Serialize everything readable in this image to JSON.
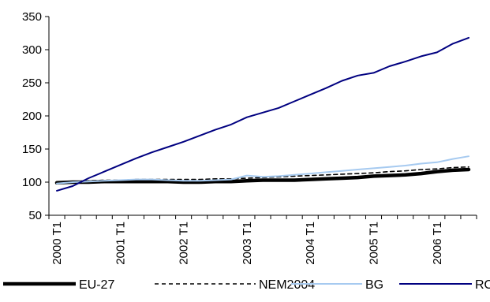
{
  "chart_data": {
    "type": "line",
    "title": "",
    "xlabel": "",
    "ylabel": "",
    "ylim": [
      50,
      350
    ],
    "yticks": [
      50,
      100,
      150,
      200,
      250,
      300,
      350
    ],
    "grid": false,
    "legend": "bottom",
    "categories": [
      "2000 T1",
      "2000 T2",
      "2000 T3",
      "2000 T4",
      "2001 T1",
      "2001 T2",
      "2001 T3",
      "2001 T4",
      "2002 T1",
      "2002 T2",
      "2002 T3",
      "2002 T4",
      "2003 T1",
      "2003 T2",
      "2003 T3",
      "2003 T4",
      "2004 T1",
      "2004 T2",
      "2004 T3",
      "2004 T4",
      "2005 T1",
      "2005 T2",
      "2005 T3",
      "2005 T4",
      "2006 T1",
      "2006 T2",
      "2006 T3"
    ],
    "xtick_labels": [
      "2000 T1",
      "2001 T1",
      "2002 T1",
      "2003 T1",
      "2004 T1",
      "2005 T1",
      "2006 T1"
    ],
    "series": [
      {
        "name": "EU-27",
        "color": "#000000",
        "style": "solid-thick",
        "values": [
          99,
          100,
          100,
          101,
          101,
          101,
          101,
          101,
          100,
          100,
          101,
          101,
          102,
          103,
          103,
          103,
          104,
          105,
          106,
          107,
          109,
          110,
          111,
          113,
          116,
          118,
          119
        ]
      },
      {
        "name": "NEM2004",
        "color": "#000000",
        "style": "dashed",
        "values": [
          100,
          101,
          102,
          103,
          103,
          104,
          104,
          104,
          104,
          104,
          105,
          105,
          106,
          107,
          108,
          109,
          110,
          111,
          112,
          113,
          114,
          116,
          117,
          119,
          120,
          122,
          123
        ]
      },
      {
        "name": "BG",
        "color": "#a6caf0",
        "style": "solid",
        "values": [
          98,
          100,
          101,
          102,
          103,
          104,
          104,
          103,
          102,
          102,
          103,
          104,
          110,
          108,
          109,
          111,
          113,
          115,
          117,
          119,
          121,
          123,
          125,
          128,
          130,
          135,
          139
        ]
      },
      {
        "name": "RO",
        "color": "#000080",
        "style": "solid",
        "values": [
          87,
          94,
          106,
          116,
          126,
          136,
          145,
          153,
          161,
          170,
          179,
          187,
          198,
          205,
          212,
          222,
          232,
          242,
          253,
          261,
          265,
          275,
          282,
          290,
          296,
          309,
          318
        ]
      }
    ]
  }
}
